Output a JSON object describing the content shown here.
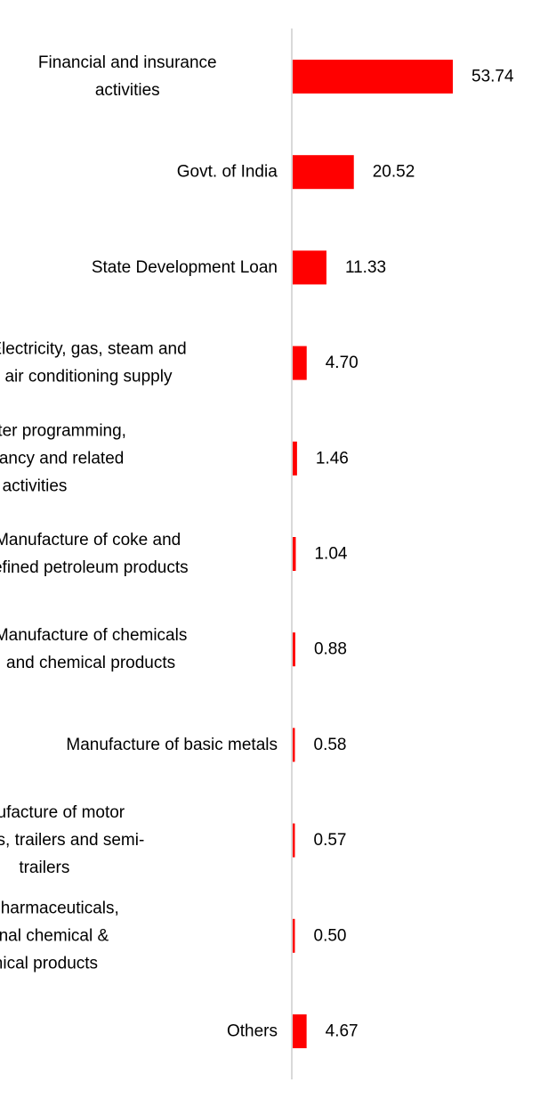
{
  "chart_data": {
    "type": "bar",
    "orientation": "horizontal",
    "categories": [
      [
        "Financial and insurance",
        "activities"
      ],
      [
        "Govt. of India"
      ],
      [
        "State Development Loan"
      ],
      [
        "Electricity, gas, steam and",
        "air conditioning supply"
      ],
      [
        "Computer programming,",
        "consultancy and related",
        "activities"
      ],
      [
        "Manufacture of coke and",
        "refined petroleum products"
      ],
      [
        "Manufacture of chemicals",
        "and chemical products"
      ],
      [
        "Manufacture of basic metals"
      ],
      [
        "Manufacture of motor",
        "vehicles, trailers and semi-",
        "trailers"
      ],
      [
        "Mfg of pharmaceuticals,",
        "medicinal chemical &",
        "botanical products"
      ],
      [
        "Others"
      ]
    ],
    "values": [
      53.74,
      20.52,
      11.33,
      4.7,
      1.46,
      1.04,
      0.88,
      0.58,
      0.57,
      0.5,
      4.67
    ],
    "value_labels": [
      "53.74",
      "20.52",
      "11.33",
      "4.70",
      "1.46",
      "1.04",
      "0.88",
      "0.58",
      "0.57",
      "0.50",
      "4.67"
    ],
    "bar_color": "#ff0000",
    "axis_color": "#d9d9d9",
    "grid": false,
    "legend": "none"
  }
}
